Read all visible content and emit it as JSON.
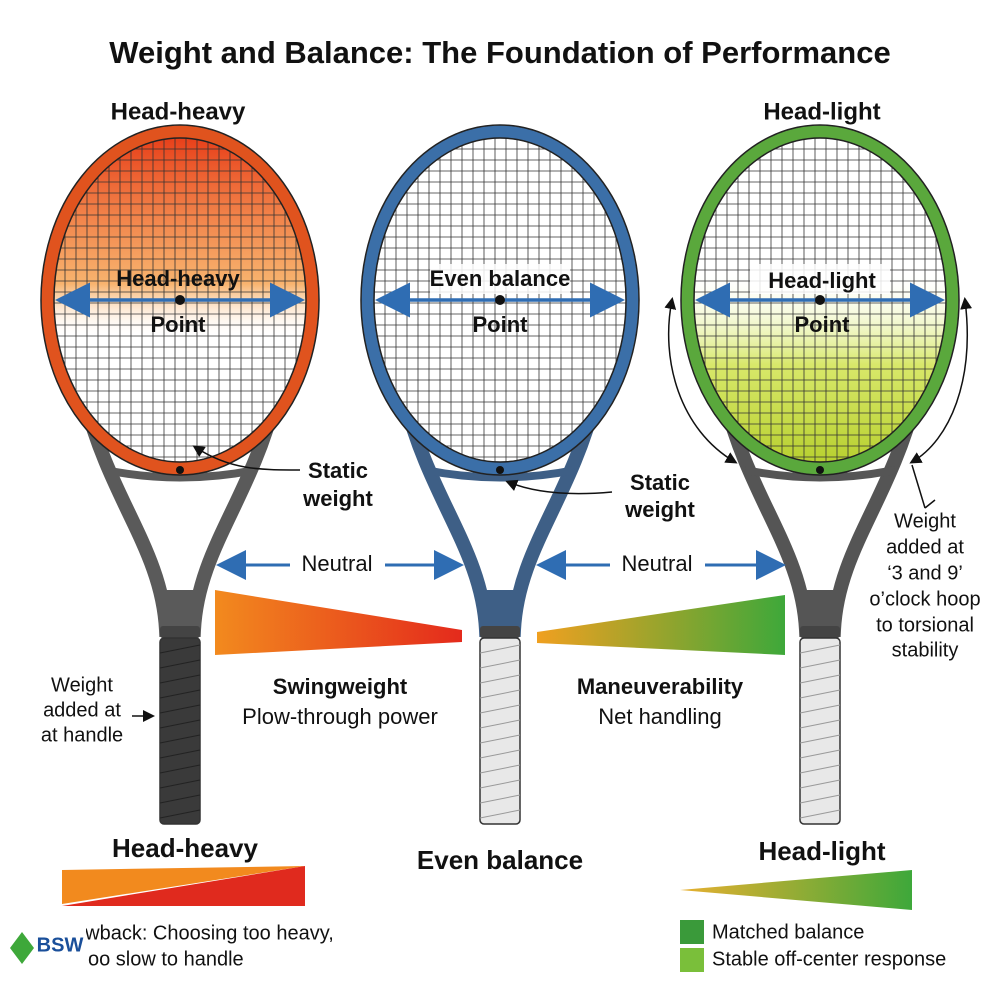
{
  "title": "Weight and Balance: The Foundation of Performance",
  "rackets": [
    {
      "header": "Head-heavy",
      "label": "Head-heavy",
      "point": "Point",
      "static_note": [
        "Static",
        "weight"
      ],
      "footer": "Head-heavy"
    },
    {
      "label": "Even balance",
      "point": "Point",
      "static_note": [
        "Static",
        "weight"
      ],
      "footer": "Even balance"
    },
    {
      "header": "Head-light",
      "label": "Head-light",
      "point": "Point",
      "footer": "Head-light"
    }
  ],
  "neutral": [
    "Neutral",
    "Neutral"
  ],
  "swingweight": {
    "title": "Swingweight",
    "subtitle": "Plow-through power"
  },
  "maneuverability": {
    "title": "Maneuverability",
    "subtitle": "Net handling"
  },
  "handle_note": [
    "Weight",
    "added at",
    "at handle"
  ],
  "hoop_note": [
    "Weight",
    "added at",
    "‘3 and 9’",
    "o’clock hoop",
    "to torsional",
    "stability"
  ],
  "drawback": [
    "awback: Choosing too heavy,",
    "oo slow to handle"
  ],
  "legend": [
    "Matched balance",
    "Stable off-center response"
  ],
  "logo": "BSW"
}
